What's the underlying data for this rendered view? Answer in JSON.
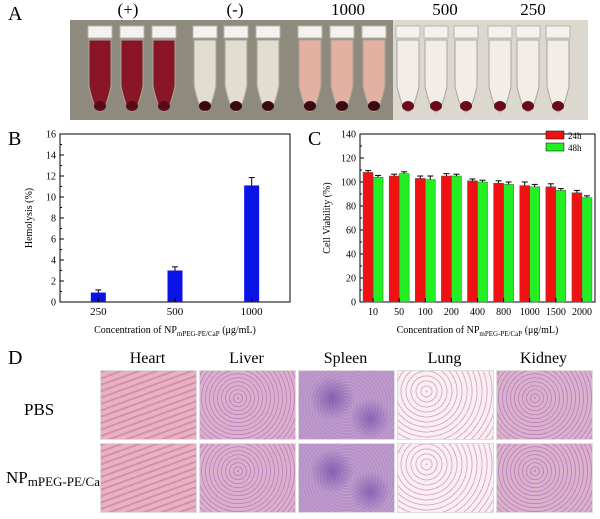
{
  "panel_labels": {
    "a": "A",
    "b": "B",
    "c": "C",
    "d": "D"
  },
  "panel_a": {
    "group_labels": [
      "(+)",
      "(-)",
      "1000",
      "500",
      "250"
    ],
    "tubes": [
      {
        "fill": "#8a0f22",
        "pellet": "#5a0a14"
      },
      {
        "fill": "#8a0f22",
        "pellet": "#5a0a14"
      },
      {
        "fill": "#8a0f22",
        "pellet": "#5a0a14"
      },
      {
        "fill": "#e6e1d6",
        "pellet": "#3a0810"
      },
      {
        "fill": "#e6e1d6",
        "pellet": "#3a0810"
      },
      {
        "fill": "#e6e1d6",
        "pellet": "#3a0810"
      },
      {
        "fill": "#e9b2a4",
        "pellet": "#3a0810"
      },
      {
        "fill": "#e9b2a4",
        "pellet": "#3a0810"
      },
      {
        "fill": "#e9b2a4",
        "pellet": "#3a0810"
      },
      {
        "fill": "#f2eee8",
        "pellet": "#6a0a18"
      },
      {
        "fill": "#f2eee8",
        "pellet": "#6a0a18"
      },
      {
        "fill": "#f2eee8",
        "pellet": "#6a0a18"
      },
      {
        "fill": "#f2eee8",
        "pellet": "#6a0a18"
      },
      {
        "fill": "#f2eee8",
        "pellet": "#6a0a18"
      },
      {
        "fill": "#f2eee8",
        "pellet": "#6a0a18"
      }
    ]
  },
  "chart_data": [
    {
      "type": "bar",
      "categories": [
        "250",
        "500",
        "1000"
      ],
      "series": [
        {
          "values": [
            0.9,
            3.0,
            11.1
          ],
          "errors": [
            0.25,
            0.35,
            0.75
          ],
          "color": "#0a14e6"
        }
      ],
      "ylabel": "Hemolysis (%)",
      "xlabel_pre": "Concentration of NP",
      "xlabel_sub": "mPEG-PE/CaP",
      "xlabel_post": " (μg/mL)",
      "ylim": [
        0,
        16
      ],
      "yticks": [
        "0",
        "2",
        "4",
        "6",
        "8",
        "10",
        "12",
        "14",
        "16"
      ]
    },
    {
      "type": "bar",
      "categories": [
        "10",
        "50",
        "100",
        "200",
        "400",
        "800",
        "1000",
        "1500",
        "2000"
      ],
      "series": [
        {
          "name": "24h",
          "color": "#f01212",
          "values": [
            108,
            105,
            103,
            105,
            101,
            99,
            97,
            96,
            91
          ],
          "errors": [
            1.5,
            1.5,
            2,
            2,
            1.5,
            2,
            3,
            2.5,
            2
          ]
        },
        {
          "name": "48h",
          "color": "#22f022",
          "values": [
            104,
            107,
            102,
            105,
            100,
            98,
            96,
            93,
            87
          ],
          "errors": [
            1.5,
            1.5,
            3,
            1.5,
            1.5,
            2,
            2,
            1.5,
            1.5
          ]
        }
      ],
      "ylabel": "Cell Viability (%)",
      "xlabel_pre": "Concentration of NP",
      "xlabel_sub": "mPEG-PE/CaP",
      "xlabel_post": " (μg/mL)",
      "ylim": [
        0,
        140
      ],
      "yticks": [
        "0",
        "20",
        "40",
        "60",
        "80",
        "100",
        "120",
        "140"
      ],
      "legend_position": "top-right"
    }
  ],
  "panel_d": {
    "columns": [
      "Heart",
      "Liver",
      "Spleen",
      "Lung",
      "Kidney"
    ],
    "row_pbs": "PBS",
    "row_np_main": "NP",
    "row_np_sub": "mPEG-PE/CaP",
    "tissue_colors": {
      "Heart": "#e3a9bd",
      "Liver": "#d9a6c8",
      "Spleen": "#b690c6",
      "Lung": "#efd6e2",
      "Kidney": "#d7a8c9"
    }
  }
}
